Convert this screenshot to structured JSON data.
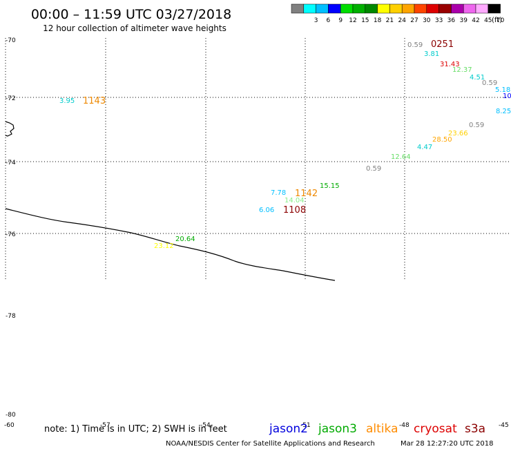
{
  "header": {
    "title": "00:00 – 11:59 UTC 03/27/2018",
    "subtitle": "12 hour collection of altimeter wave heights"
  },
  "colorbar": {
    "unit": "(ft)",
    "swatches": [
      {
        "label": "",
        "color": "#808080"
      },
      {
        "label": "3",
        "color": "#00ffff"
      },
      {
        "label": "6",
        "color": "#00bfff"
      },
      {
        "label": "9",
        "color": "#0000ff"
      },
      {
        "label": "12",
        "color": "#00dd00"
      },
      {
        "label": "15",
        "color": "#00b000"
      },
      {
        "label": "18",
        "color": "#008800"
      },
      {
        "label": "21",
        "color": "#ffff00"
      },
      {
        "label": "24",
        "color": "#ffd000"
      },
      {
        "label": "27",
        "color": "#ffa500"
      },
      {
        "label": "30",
        "color": "#ff4500"
      },
      {
        "label": "33",
        "color": "#dd0000"
      },
      {
        "label": "36",
        "color": "#990000"
      },
      {
        "label": "39",
        "color": "#aa00aa"
      },
      {
        "label": "42",
        "color": "#ee66ee"
      },
      {
        "label": "45",
        "color": "#ffaaff"
      },
      {
        "label": "70",
        "color": "#000000"
      }
    ]
  },
  "axes": {
    "lat_labels": [
      "-70",
      "-72",
      "-74",
      "-76",
      "-78",
      "-80",
      "-60"
    ],
    "lon_labels": [
      "-57",
      "-54",
      "-51",
      "-48",
      "-45"
    ]
  },
  "observations": [
    {
      "text": "0.59",
      "color": "#808080"
    },
    {
      "text": "0251",
      "color": "#8b0000"
    },
    {
      "text": "3.81",
      "color": "#00cccc"
    },
    {
      "text": "31.43",
      "color": "#dd0000"
    },
    {
      "text": "12.37",
      "color": "#66dd66"
    },
    {
      "text": "4.51",
      "color": "#00cccc"
    },
    {
      "text": "0.59",
      "color": "#808080"
    },
    {
      "text": "5.18",
      "color": "#00bfff"
    },
    {
      "text": "10",
      "color": "#0000ff"
    },
    {
      "text": "8.25",
      "color": "#00bfff"
    },
    {
      "text": "3.95",
      "color": "#00cccc"
    },
    {
      "text": "1143",
      "color": "#ee8800"
    },
    {
      "text": "0.59",
      "color": "#808080"
    },
    {
      "text": "23.66",
      "color": "#ffd000"
    },
    {
      "text": "28.50",
      "color": "#ffa500"
    },
    {
      "text": "4.47",
      "color": "#00cccc"
    },
    {
      "text": "12.64",
      "color": "#66dd66"
    },
    {
      "text": "0.59",
      "color": "#808080"
    },
    {
      "text": "15.15",
      "color": "#00aa00"
    },
    {
      "text": "7.78",
      "color": "#00bfff"
    },
    {
      "text": "1142",
      "color": "#ee8800"
    },
    {
      "text": "14.04",
      "color": "#88ee88"
    },
    {
      "text": "6.06",
      "color": "#00bfff"
    },
    {
      "text": "1108",
      "color": "#8b0000"
    },
    {
      "text": "20.64",
      "color": "#00aa00"
    },
    {
      "text": "23.12",
      "color": "#ffff00"
    }
  ],
  "footer": {
    "note": "note: 1) Time is in UTC; 2) SWH is in feet",
    "satellites": [
      {
        "name": "jason2",
        "color": "#0000dd"
      },
      {
        "name": "jason3",
        "color": "#00aa00"
      },
      {
        "name": "altika",
        "color": "#ff8c00"
      },
      {
        "name": "cryosat",
        "color": "#dd0000"
      },
      {
        "name": "s3a",
        "color": "#8b0000"
      }
    ],
    "credit": "NOAA/NESDIS Center for Satellite Applications and Research",
    "timestamp": "Mar 28 12:27:20 UTC 2018"
  }
}
